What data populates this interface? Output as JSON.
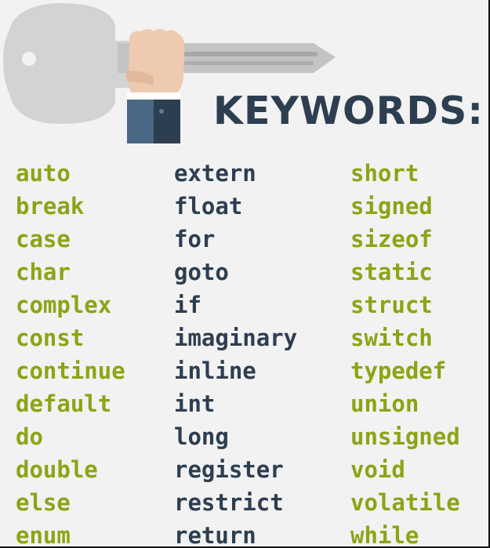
{
  "header": {
    "title": "KEYWORDS:",
    "illustration_icon": "hand-holding-key-icon"
  },
  "colors": {
    "keyword_green": "#8ea315",
    "keyword_navy": "#2d3e50",
    "background": "#f2f2f2"
  },
  "keywords": {
    "column_1": [
      "auto",
      "break",
      "case",
      "char",
      "complex",
      "const",
      "continue",
      "default",
      "do",
      "double",
      "else",
      "enum"
    ],
    "column_2": [
      "extern",
      "float",
      "for",
      "goto",
      "if",
      "imaginary",
      "inline",
      "int",
      "long",
      "register",
      "restrict",
      "return"
    ],
    "column_3": [
      "short",
      "signed",
      "sizeof",
      "static",
      "struct",
      "switch",
      "typedef",
      "union",
      "unsigned",
      "void",
      "volatile",
      "while"
    ]
  }
}
